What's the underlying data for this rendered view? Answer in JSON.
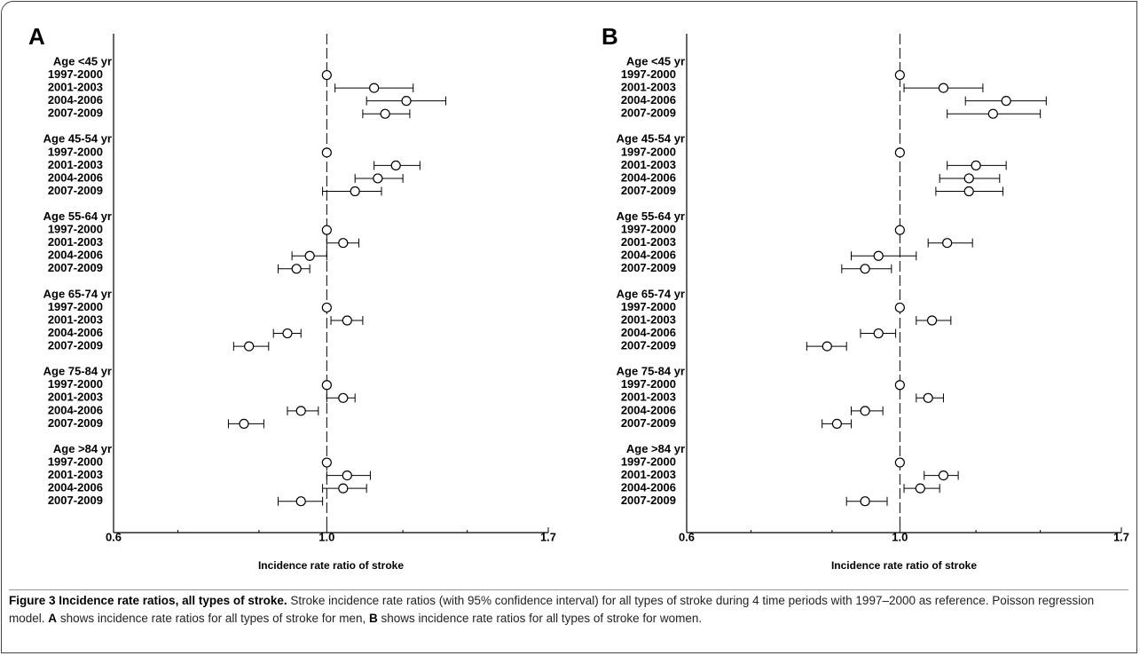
{
  "chart_data": [
    {
      "type": "forest",
      "panel_label": "A",
      "xlabel": "Incidence rate ratio of stroke",
      "log_x": true,
      "xlim": [
        0.6,
        1.7
      ],
      "xticks": [
        0.6,
        {
          "value": 1,
          "label": "1.0"
        },
        1.7
      ],
      "minor_xticks": [
        0.7,
        0.85,
        1.2,
        1.4
      ],
      "reference_line": 1,
      "groups": [
        {
          "name": "Age <45 yr",
          "rows": [
            {
              "label": "1997-2000",
              "value": 1,
              "lower": null,
              "upper": null
            },
            {
              "label": "2001-2003",
              "value": 1.12,
              "lower": 1.02,
              "upper": 1.23
            },
            {
              "label": "2004-2006",
              "value": 1.21,
              "lower": 1.1,
              "upper": 1.33
            },
            {
              "label": "2007-2009",
              "value": 1.15,
              "lower": 1.09,
              "upper": 1.22
            }
          ]
        },
        {
          "name": "Age 45-54 yr",
          "rows": [
            {
              "label": "1997-2000",
              "value": 1,
              "lower": null,
              "upper": null
            },
            {
              "label": "2001-2003",
              "value": 1.18,
              "lower": 1.12,
              "upper": 1.25
            },
            {
              "label": "2004-2006",
              "value": 1.13,
              "lower": 1.07,
              "upper": 1.2
            },
            {
              "label": "2007-2009",
              "value": 1.07,
              "lower": 0.99,
              "upper": 1.14
            }
          ]
        },
        {
          "name": "Age 55-64 yr",
          "rows": [
            {
              "label": "1997-2000",
              "value": 1,
              "lower": null,
              "upper": null
            },
            {
              "label": "2001-2003",
              "value": 1.04,
              "lower": 1.0,
              "upper": 1.08
            },
            {
              "label": "2004-2006",
              "value": 0.96,
              "lower": 0.92,
              "upper": 1.0
            },
            {
              "label": "2007-2009",
              "value": 0.93,
              "lower": 0.89,
              "upper": 0.96
            }
          ]
        },
        {
          "name": "Age 65-74 yr",
          "rows": [
            {
              "label": "1997-2000",
              "value": 1,
              "lower": null,
              "upper": null
            },
            {
              "label": "2001-2003",
              "value": 1.05,
              "lower": 1.01,
              "upper": 1.09
            },
            {
              "label": "2004-2006",
              "value": 0.91,
              "lower": 0.88,
              "upper": 0.94
            },
            {
              "label": "2007-2009",
              "value": 0.83,
              "lower": 0.8,
              "upper": 0.87
            }
          ]
        },
        {
          "name": "Age 75-84 yr",
          "rows": [
            {
              "label": "1997-2000",
              "value": 1,
              "lower": null,
              "upper": null
            },
            {
              "label": "2001-2003",
              "value": 1.04,
              "lower": 1.0,
              "upper": 1.07
            },
            {
              "label": "2004-2006",
              "value": 0.94,
              "lower": 0.91,
              "upper": 0.98
            },
            {
              "label": "2007-2009",
              "value": 0.82,
              "lower": 0.79,
              "upper": 0.86
            }
          ]
        },
        {
          "name": "Age >84 yr",
          "rows": [
            {
              "label": "1997-2000",
              "value": 1,
              "lower": null,
              "upper": null
            },
            {
              "label": "2001-2003",
              "value": 1.05,
              "lower": 1.0,
              "upper": 1.11
            },
            {
              "label": "2004-2006",
              "value": 1.04,
              "lower": 0.99,
              "upper": 1.1
            },
            {
              "label": "2007-2009",
              "value": 0.94,
              "lower": 0.89,
              "upper": 0.99
            }
          ]
        }
      ]
    },
    {
      "type": "forest",
      "panel_label": "B",
      "xlabel": "Incidence rate ratio of stroke",
      "log_x": true,
      "xlim": [
        0.6,
        1.7
      ],
      "xticks": [
        0.6,
        {
          "value": 1,
          "label": "1.0"
        },
        1.7
      ],
      "minor_xticks": [
        0.7,
        0.85,
        1.2,
        1.4
      ],
      "reference_line": 1,
      "groups": [
        {
          "name": "Age <45 yr",
          "rows": [
            {
              "label": "1997-2000",
              "value": 1,
              "lower": null,
              "upper": null
            },
            {
              "label": "2001-2003",
              "value": 1.11,
              "lower": 1.01,
              "upper": 1.22
            },
            {
              "label": "2004-2006",
              "value": 1.29,
              "lower": 1.17,
              "upper": 1.42
            },
            {
              "label": "2007-2009",
              "value": 1.25,
              "lower": 1.12,
              "upper": 1.4
            }
          ]
        },
        {
          "name": "Age 45-54 yr",
          "rows": [
            {
              "label": "1997-2000",
              "value": 1,
              "lower": null,
              "upper": null
            },
            {
              "label": "2001-2003",
              "value": 1.2,
              "lower": 1.12,
              "upper": 1.29
            },
            {
              "label": "2004-2006",
              "value": 1.18,
              "lower": 1.1,
              "upper": 1.27
            },
            {
              "label": "2007-2009",
              "value": 1.18,
              "lower": 1.09,
              "upper": 1.28
            }
          ]
        },
        {
          "name": "Age 55-64 yr",
          "rows": [
            {
              "label": "1997-2000",
              "value": 1,
              "lower": null,
              "upper": null
            },
            {
              "label": "2001-2003",
              "value": 1.12,
              "lower": 1.07,
              "upper": 1.19
            },
            {
              "label": "2004-2006",
              "value": 0.95,
              "lower": 0.89,
              "upper": 1.04
            },
            {
              "label": "2007-2009",
              "value": 0.92,
              "lower": 0.87,
              "upper": 0.98
            }
          ]
        },
        {
          "name": "Age 65-74 yr",
          "rows": [
            {
              "label": "1997-2000",
              "value": 1,
              "lower": null,
              "upper": null
            },
            {
              "label": "2001-2003",
              "value": 1.08,
              "lower": 1.04,
              "upper": 1.13
            },
            {
              "label": "2004-2006",
              "value": 0.95,
              "lower": 0.91,
              "upper": 0.99
            },
            {
              "label": "2007-2009",
              "value": 0.84,
              "lower": 0.8,
              "upper": 0.88
            }
          ]
        },
        {
          "name": "Age 75-84 yr",
          "rows": [
            {
              "label": "1997-2000",
              "value": 1,
              "lower": null,
              "upper": null
            },
            {
              "label": "2001-2003",
              "value": 1.07,
              "lower": 1.04,
              "upper": 1.11
            },
            {
              "label": "2004-2006",
              "value": 0.92,
              "lower": 0.89,
              "upper": 0.96
            },
            {
              "label": "2007-2009",
              "value": 0.86,
              "lower": 0.83,
              "upper": 0.89
            }
          ]
        },
        {
          "name": "Age >84 yr",
          "rows": [
            {
              "label": "1997-2000",
              "value": 1,
              "lower": null,
              "upper": null
            },
            {
              "label": "2001-2003",
              "value": 1.11,
              "lower": 1.06,
              "upper": 1.15
            },
            {
              "label": "2004-2006",
              "value": 1.05,
              "lower": 1.01,
              "upper": 1.1
            },
            {
              "label": "2007-2009",
              "value": 0.92,
              "lower": 0.88,
              "upper": 0.97
            }
          ]
        }
      ]
    }
  ],
  "caption": {
    "title": "Figure 3 Incidence rate ratios, all types of stroke.",
    "text1": "Stroke incidence rate ratios (with 95% confidence interval) for all types of stroke during 4 time periods with 1997–2000 as reference. Poisson regression model.",
    "bold_a": "A",
    "text2": "shows incidence rate ratios for all types of stroke for men,",
    "bold_b": "B",
    "text3": "shows incidence rate ratios for all types of stroke for women."
  }
}
